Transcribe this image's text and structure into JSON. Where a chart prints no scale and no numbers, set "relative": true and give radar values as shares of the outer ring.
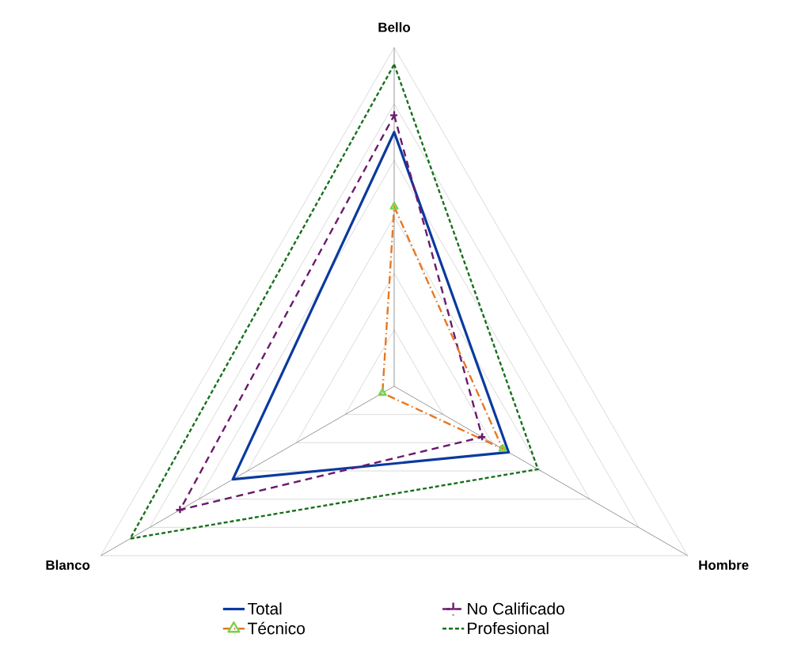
{
  "chart_data": {
    "type": "radar",
    "relative": true,
    "grid": true,
    "legend": "bottom",
    "categories": [
      "Bello",
      "Hombre",
      "Blanco"
    ],
    "series": [
      {
        "name": "Total",
        "color": "#0a3a9e",
        "values": [
          0.75,
          0.39,
          0.55
        ],
        "marker": "none",
        "line_style": "solid"
      },
      {
        "name": "No Calificado",
        "color": "#6b1a6e",
        "values": [
          0.8,
          0.3,
          0.73
        ],
        "marker": "cross",
        "line_style": "dashed"
      },
      {
        "name": "Técnico",
        "color": "#e87722",
        "values": [
          0.53,
          0.37,
          0.04
        ],
        "marker": "triangle",
        "line_style": "dashdot"
      },
      {
        "name": "Profesional",
        "color": "#17701c",
        "values": [
          0.95,
          0.49,
          0.9
        ],
        "marker": "none",
        "line_style": "dotted"
      }
    ]
  }
}
